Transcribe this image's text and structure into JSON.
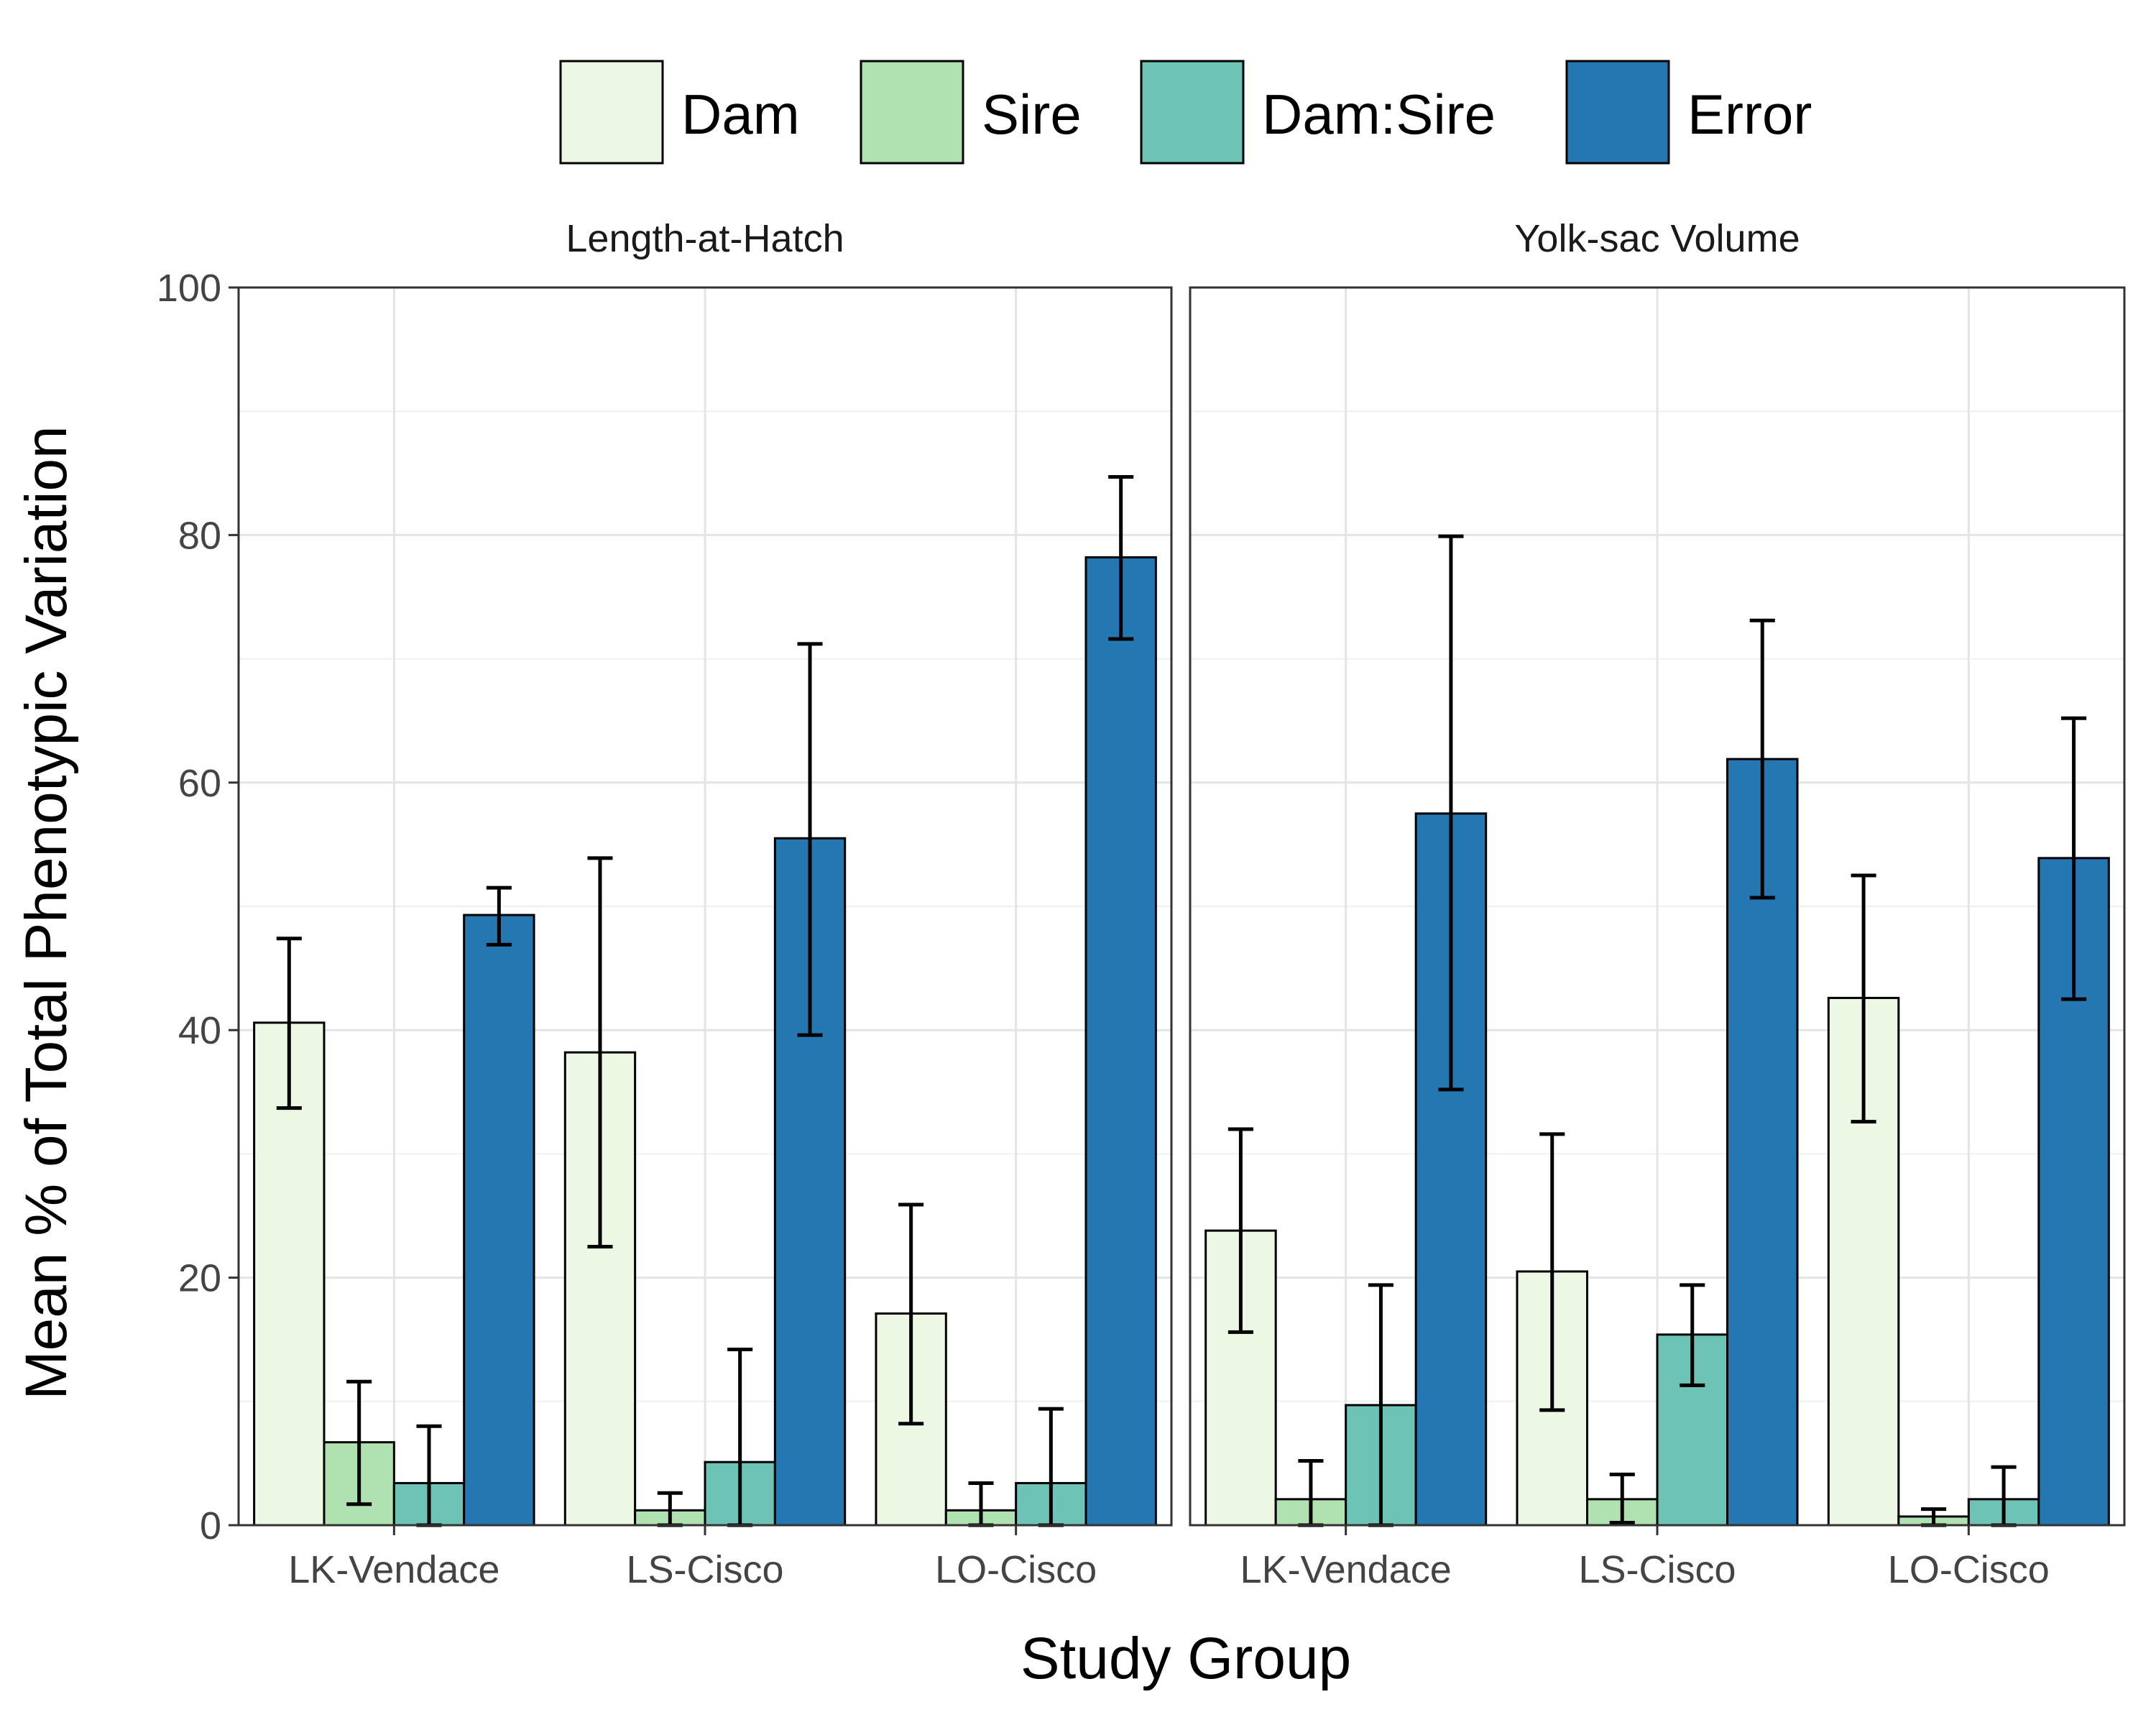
{
  "chart_data": {
    "type": "bar",
    "xlabel": "Study Group",
    "ylabel": "Mean % of Total Phenotypic Variation",
    "ylim": [
      0,
      100
    ],
    "yticks": [
      0,
      20,
      40,
      60,
      80,
      100
    ],
    "grid": true,
    "legend_position": "top",
    "categories": [
      "LK-Vendace",
      "LS-Cisco",
      "LO-Cisco"
    ],
    "series_names": [
      "Dam",
      "Sire",
      "Dam:Sire",
      "Error"
    ],
    "colors": {
      "Dam": "#edf8e4",
      "Sire": "#b0e1b0",
      "Dam:Sire": "#6cc3b6",
      "Error": "#2477b0"
    },
    "panels": [
      {
        "title": "Length-at-Hatch",
        "series": [
          {
            "name": "Dam",
            "values": [
              40.6,
              38.2,
              17.1
            ],
            "lower": [
              33.7,
              22.5,
              8.2
            ],
            "upper": [
              47.4,
              53.9,
              25.9
            ]
          },
          {
            "name": "Sire",
            "values": [
              6.7,
              1.2,
              1.2
            ],
            "lower": [
              1.7,
              0,
              0
            ],
            "upper": [
              11.6,
              2.6,
              3.4
            ]
          },
          {
            "name": "Dam:Sire",
            "values": [
              3.4,
              5.1,
              3.4
            ],
            "lower": [
              0,
              0,
              0
            ],
            "upper": [
              8.0,
              14.2,
              9.4
            ]
          },
          {
            "name": "Error",
            "values": [
              49.3,
              55.5,
              78.2
            ],
            "lower": [
              46.9,
              39.6,
              71.6
            ],
            "upper": [
              51.5,
              71.2,
              84.7
            ]
          }
        ]
      },
      {
        "title": "Yolk-sac Volume",
        "series": [
          {
            "name": "Dam",
            "values": [
              23.8,
              20.5,
              42.6
            ],
            "lower": [
              15.6,
              9.3,
              32.6
            ],
            "upper": [
              32.0,
              31.6,
              52.5
            ]
          },
          {
            "name": "Sire",
            "values": [
              2.1,
              2.1,
              0.7
            ],
            "lower": [
              0,
              0.2,
              0
            ],
            "upper": [
              5.2,
              4.1,
              1.3
            ]
          },
          {
            "name": "Dam:Sire",
            "values": [
              9.7,
              15.4,
              2.1
            ],
            "lower": [
              0,
              11.3,
              0
            ],
            "upper": [
              19.4,
              19.4,
              4.7
            ]
          },
          {
            "name": "Error",
            "values": [
              57.5,
              61.9,
              53.9
            ],
            "lower": [
              35.2,
              50.7,
              42.5
            ],
            "upper": [
              79.9,
              73.1,
              65.2
            ]
          }
        ]
      }
    ]
  }
}
